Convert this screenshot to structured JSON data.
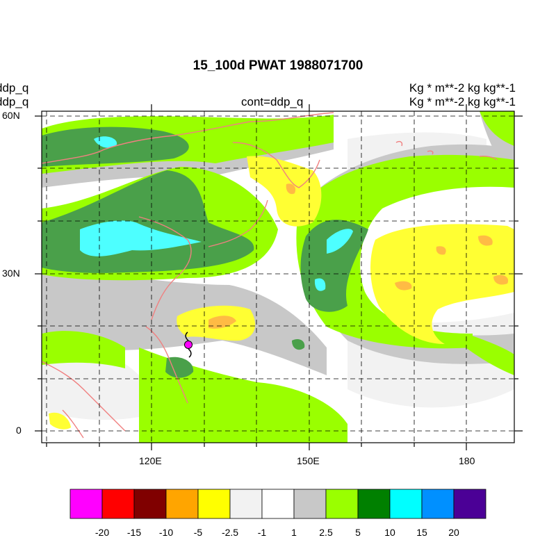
{
  "title": "15_100d PWAT  1988071700",
  "left_labels": [
    "ddp_q",
    "ddp_q"
  ],
  "center_label": "cont=ddp_q",
  "right_labels": [
    "Kg  * m**-2 kg kg**-1",
    "Kg  * m**-2 kg kg**-1"
  ],
  "lat_ticks": [
    "60N",
    "30N",
    "0"
  ],
  "lon_ticks": [
    "120E",
    "150E",
    "180"
  ],
  "colorbar": {
    "colors": [
      "#ff00ff",
      "#ff0000",
      "#800000",
      "#ffa500",
      "#ffff00",
      "#f2f2f2",
      "#ffffff",
      "#c8c8c8",
      "#9aff00",
      "#008000",
      "#00ffff",
      "#0090ff",
      "#4b0096"
    ],
    "labels": [
      "-20",
      "-15",
      "-10",
      "-5",
      "-2.5",
      "-1",
      "1",
      "2.5",
      "5",
      "10",
      "15",
      "20"
    ]
  },
  "palette": {
    "land_outline": "#f08080",
    "typhoon_marker": "#ff00ff",
    "grid": "#000000"
  }
}
